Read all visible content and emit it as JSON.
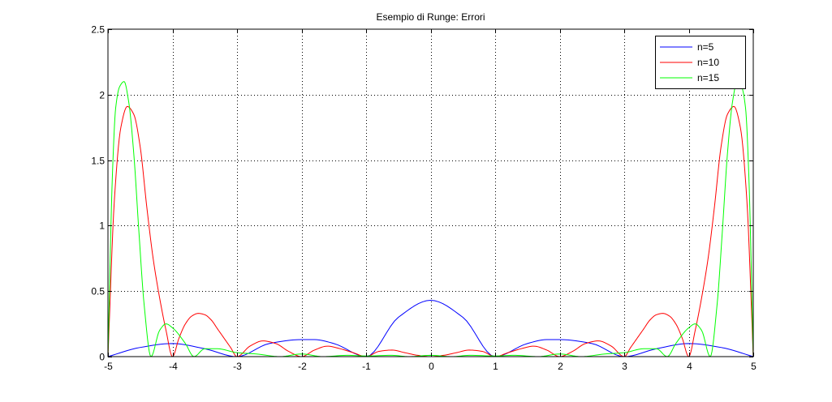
{
  "chart_data": {
    "type": "line",
    "title": "Esempio di Runge: Errori",
    "xlabel": "",
    "ylabel": "",
    "xlim": [
      -5,
      5
    ],
    "ylim": [
      0,
      2.5
    ],
    "xticks": [
      -5,
      -4,
      -3,
      -2,
      -1,
      0,
      1,
      2,
      3,
      4,
      5
    ],
    "xtick_labels": [
      "-5",
      "-4",
      "-3",
      "-2",
      "-1",
      "0",
      "1",
      "2",
      "3",
      "4",
      "5"
    ],
    "yticks": [
      0,
      0.5,
      1,
      1.5,
      2,
      2.5
    ],
    "ytick_labels": [
      "0",
      "0.5",
      "1",
      "1.5",
      "2",
      "2.5"
    ],
    "grid": true,
    "legend_position": "top-right",
    "series": [
      {
        "name": "n=5",
        "color": "#0000ff",
        "nodes": [
          -5,
          -3,
          -1,
          1,
          3,
          5
        ],
        "x": [
          -5,
          -4.5,
          -4,
          -3.5,
          -3,
          -2.5,
          -2,
          -1.8,
          -1.5,
          -1,
          -0.5,
          0,
          0.5,
          1,
          1.5,
          1.8,
          2,
          2.5,
          3,
          3.5,
          4,
          4.5,
          5
        ],
        "y": [
          0,
          0.07,
          0.1,
          0.06,
          0,
          0.1,
          0.13,
          0.13,
          0.1,
          0,
          0.3,
          0.43,
          0.3,
          0,
          0.1,
          0.13,
          0.13,
          0.1,
          0,
          0.06,
          0.1,
          0.07,
          0
        ]
      },
      {
        "name": "n=10",
        "color": "#ff0000",
        "nodes": [
          -5,
          -4,
          -3,
          -2,
          -1,
          0,
          1,
          2,
          3,
          4,
          5
        ],
        "x": [
          -5,
          -4.9,
          -4.8,
          -4.7,
          -4.6,
          -4.5,
          -4.4,
          -4.3,
          -4.2,
          -4.1,
          -4,
          -3.9,
          -3.8,
          -3.7,
          -3.6,
          -3.5,
          -3.4,
          -3.3,
          -3.2,
          -3.1,
          -3,
          -2.8,
          -2.6,
          -2.4,
          -2.2,
          -2,
          -1.8,
          -1.6,
          -1.4,
          -1.2,
          -1,
          -0.8,
          -0.6,
          -0.4,
          -0.2,
          0,
          0.2,
          0.4,
          0.6,
          0.8,
          1,
          1.2,
          1.4,
          1.6,
          1.8,
          2,
          2.2,
          2.4,
          2.6,
          2.8,
          3,
          3.1,
          3.2,
          3.3,
          3.4,
          3.5,
          3.6,
          3.7,
          3.8,
          3.9,
          4,
          4.1,
          4.2,
          4.3,
          4.4,
          4.5,
          4.6,
          4.7,
          4.8,
          4.9,
          5
        ],
        "y": [
          0,
          1.2,
          1.75,
          1.91,
          1.85,
          1.6,
          1.15,
          0.75,
          0.45,
          0.2,
          0,
          0.14,
          0.25,
          0.31,
          0.33,
          0.32,
          0.28,
          0.21,
          0.14,
          0.07,
          0,
          0.08,
          0.12,
          0.1,
          0.04,
          0,
          0.05,
          0.08,
          0.06,
          0.03,
          0,
          0.04,
          0.05,
          0.03,
          0.01,
          0,
          0.01,
          0.03,
          0.05,
          0.04,
          0,
          0.03,
          0.06,
          0.08,
          0.05,
          0,
          0.04,
          0.1,
          0.12,
          0.08,
          0,
          0.07,
          0.14,
          0.21,
          0.28,
          0.32,
          0.33,
          0.31,
          0.25,
          0.14,
          0,
          0.2,
          0.45,
          0.75,
          1.15,
          1.6,
          1.85,
          1.91,
          1.75,
          1.2,
          0
        ]
      },
      {
        "name": "n=15",
        "color": "#00ff00",
        "nodes": [
          -5,
          -4.333,
          -3.667,
          -3,
          -2.333,
          -1.667,
          -1,
          -0.333,
          0.333,
          1,
          1.667,
          2.333,
          3,
          3.667,
          4.333,
          5
        ],
        "x": [
          -5,
          -4.93,
          -4.88,
          -4.82,
          -4.75,
          -4.68,
          -4.6,
          -4.52,
          -4.44,
          -4.333,
          -4.2,
          -4.1,
          -4.0,
          -3.8,
          -3.667,
          -3.5,
          -3.3,
          -3.0,
          -2.7,
          -2.333,
          -2.0,
          -1.667,
          -1.3,
          -1.0,
          -0.6,
          -0.333,
          0,
          0.333,
          0.6,
          1.0,
          1.3,
          1.667,
          2.0,
          2.333,
          2.7,
          3.0,
          3.3,
          3.5,
          3.667,
          3.8,
          4.0,
          4.1,
          4.2,
          4.333,
          4.44,
          4.52,
          4.6,
          4.68,
          4.75,
          4.82,
          4.88,
          4.93,
          5
        ],
        "y": [
          0,
          1.4,
          1.9,
          2.06,
          2.1,
          1.95,
          1.55,
          0.95,
          0.4,
          0,
          0.2,
          0.25,
          0.22,
          0.1,
          0,
          0.06,
          0.06,
          0.03,
          0.02,
          0,
          0.02,
          0,
          0.01,
          0.005,
          0.01,
          0,
          0.01,
          0,
          0.01,
          0.005,
          0.01,
          0,
          0.02,
          0,
          0.02,
          0.03,
          0.06,
          0.06,
          0,
          0.1,
          0.22,
          0.25,
          0.2,
          0,
          0.4,
          0.95,
          1.55,
          1.95,
          2.1,
          2.06,
          1.9,
          1.4,
          0
        ]
      }
    ]
  }
}
